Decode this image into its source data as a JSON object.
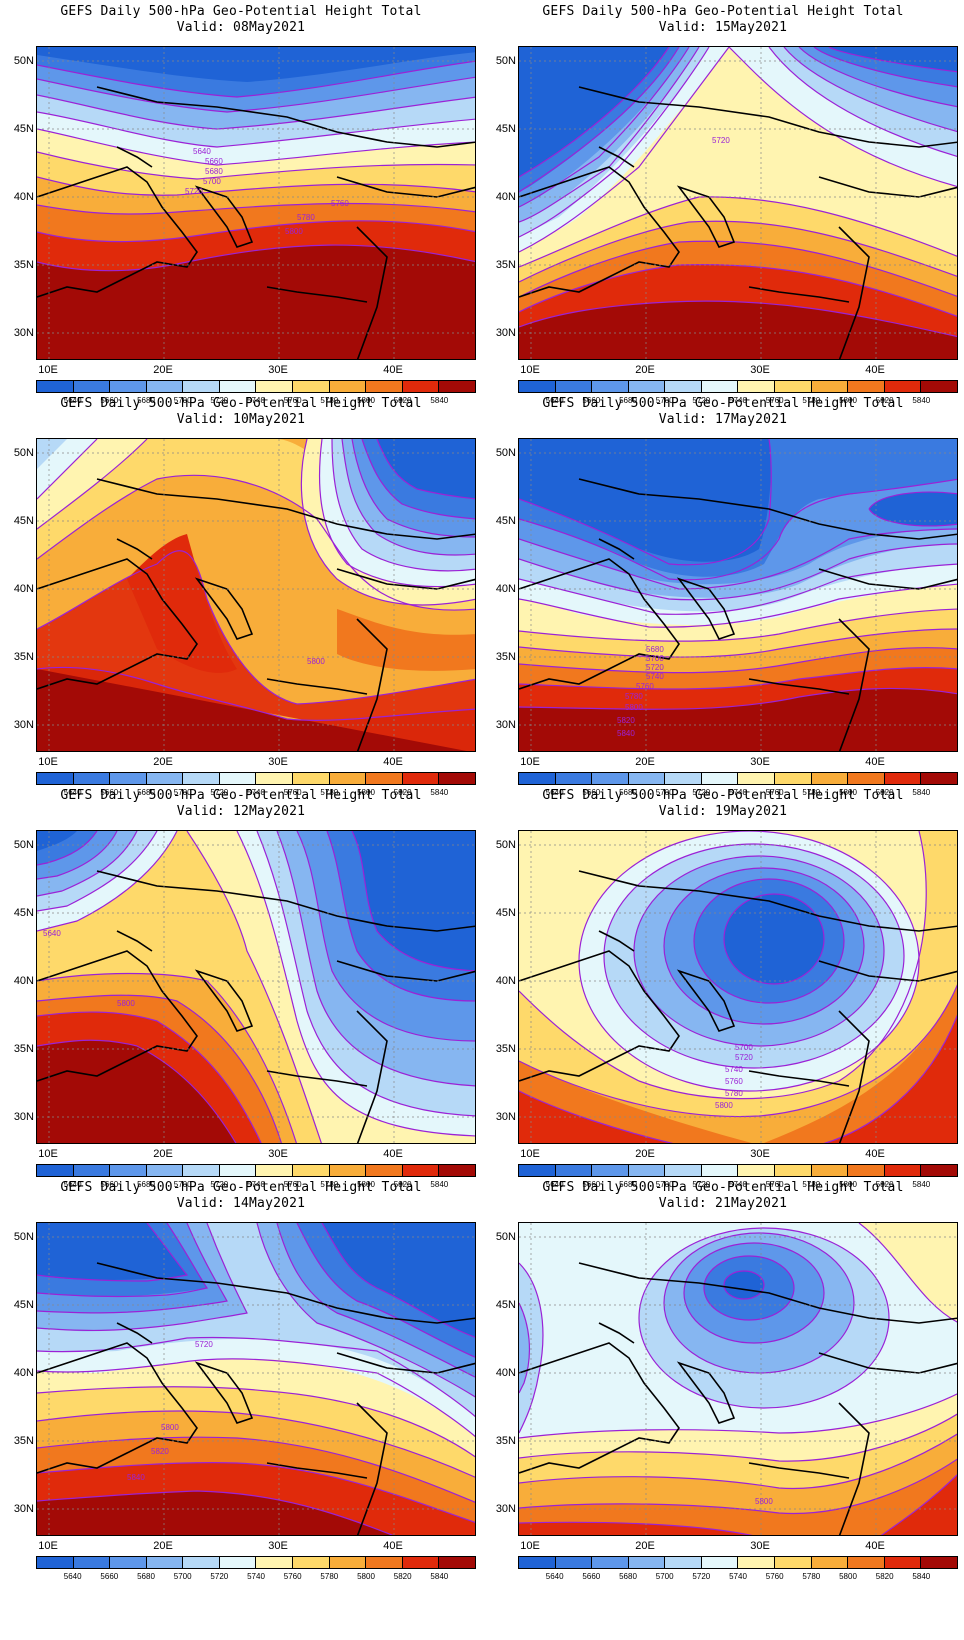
{
  "title": "GEFS Daily 500-hPa Geo-Potential Height Total",
  "lat_labels": [
    "50N",
    "45N",
    "40N",
    "35N",
    "30N"
  ],
  "lon_labels": [
    "10E",
    "20E",
    "30E",
    "40E"
  ],
  "colorbar": {
    "levels": [
      "5640",
      "5660",
      "5680",
      "5700",
      "5720",
      "5740",
      "5760",
      "5780",
      "5800",
      "5820",
      "5840"
    ],
    "colors": [
      "#1f63d6",
      "#3a7ae0",
      "#5e97ea",
      "#86b6f1",
      "#b6d9f7",
      "#e4f7fb",
      "#fff4b0",
      "#fed96a",
      "#f8ad3a",
      "#f1781e",
      "#e02a0b",
      "#a30a06"
    ]
  },
  "contour_color": "#9b22d6",
  "panels": [
    {
      "valid": "Valid: 08May2021",
      "labels": [
        "5640",
        "5660",
        "5680",
        "5700",
        "5720",
        "5760",
        "5780",
        "5800"
      ]
    },
    {
      "valid": "Valid: 15May2021",
      "labels": [
        "5720"
      ]
    },
    {
      "valid": "Valid: 10May2021",
      "labels": [
        "5800"
      ]
    },
    {
      "valid": "Valid: 17May2021",
      "labels": [
        "5680",
        "5700",
        "5720",
        "5740",
        "5760",
        "5780",
        "5800",
        "5820",
        "5840"
      ]
    },
    {
      "valid": "Valid: 12May2021",
      "labels": [
        "5640",
        "5800"
      ]
    },
    {
      "valid": "Valid: 19May2021",
      "labels": [
        "5700",
        "5720",
        "5740",
        "5760",
        "5780",
        "5800"
      ]
    },
    {
      "valid": "Valid: 14May2021",
      "labels": [
        "5720",
        "5800",
        "5820",
        "5840"
      ]
    },
    {
      "valid": "Valid: 21May2021",
      "labels": [
        "5800"
      ]
    }
  ]
}
